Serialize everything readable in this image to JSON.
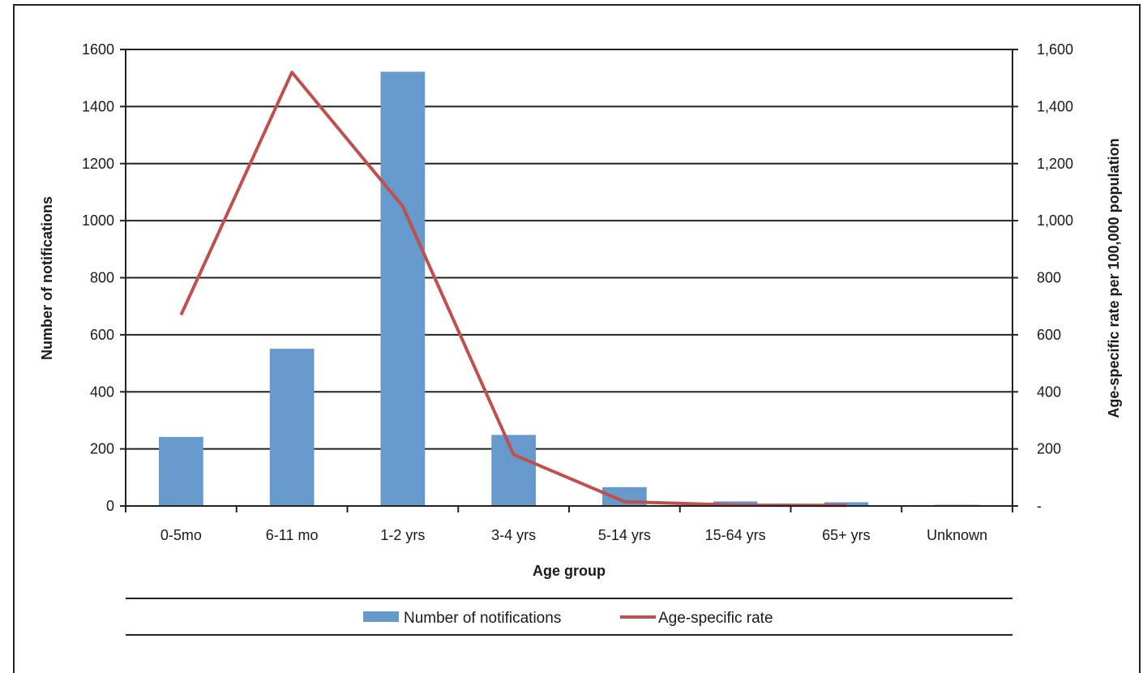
{
  "chart_data": {
    "type": "bar",
    "categories": [
      "0-5mo",
      "6-11 mo",
      "1-2 yrs",
      "3-4 yrs",
      "5-14 yrs",
      "15-64 yrs",
      "65+ yrs",
      "Unknown"
    ],
    "series": [
      {
        "name": "Number of notifications",
        "type": "bar",
        "axis": "left",
        "color": "#6699cc",
        "values": [
          242,
          551,
          1522,
          249,
          66,
          16,
          13,
          4
        ]
      },
      {
        "name": "Age-specific rate",
        "type": "line",
        "axis": "right",
        "color": "#c0504d",
        "values": [
          670,
          1520,
          1050,
          180,
          15,
          3,
          2,
          null
        ]
      }
    ],
    "xlabel": "Age group",
    "ylabel": "Number of notifications",
    "y2label": "Age-specific rate per 100,000 population",
    "ylim": [
      0,
      1600
    ],
    "y2lim": [
      0,
      1600
    ],
    "yticks": [
      "0",
      "200",
      "400",
      "600",
      "800",
      "1000",
      "1200",
      "1400",
      "1600"
    ],
    "y2ticks": [
      "-",
      "200",
      "400",
      "600",
      "800",
      "1,000",
      "1,200",
      "1,400",
      "1,600"
    ],
    "grid": true,
    "legend_position": "bottom"
  }
}
